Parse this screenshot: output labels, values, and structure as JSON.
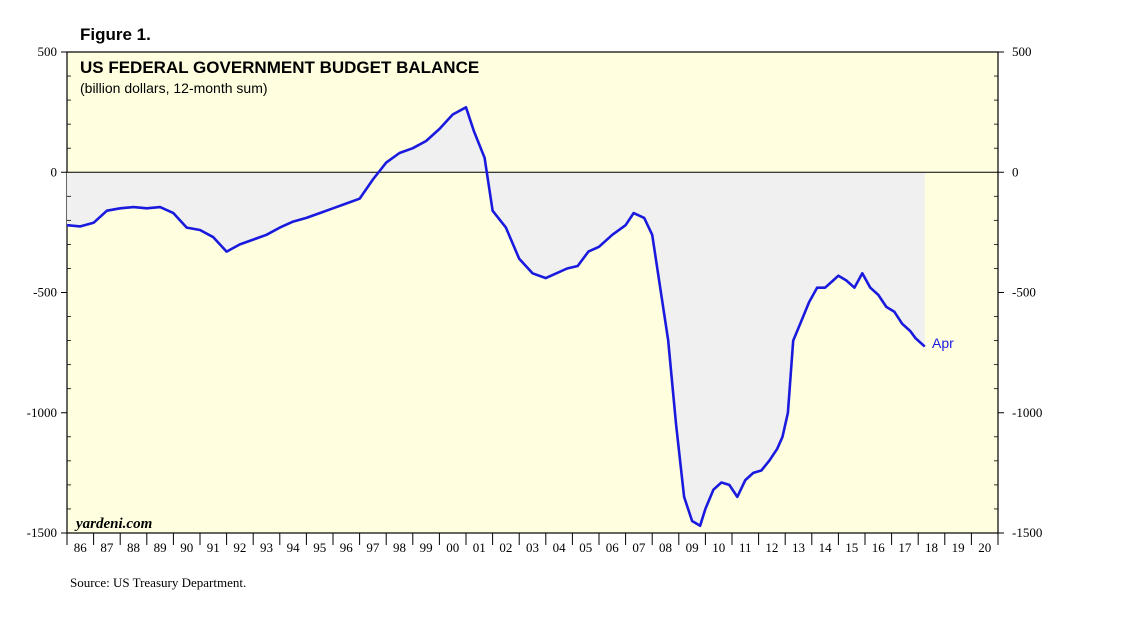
{
  "figure_label": "Figure 1.",
  "source": "Source: US Treasury Department.",
  "watermark": "yardeni.com",
  "chart_data": {
    "type": "area",
    "title": "US FEDERAL GOVERNMENT BUDGET BALANCE",
    "subtitle": "(billion dollars, 12-month sum)",
    "ylim": [
      -1500,
      500
    ],
    "y_major_ticks": [
      500,
      0,
      -500,
      -1000,
      -1500
    ],
    "y_tick_labels_left": [
      "500",
      "0",
      "-500",
      "-1000",
      "-1500"
    ],
    "y_tick_labels_right": [
      "500",
      "0",
      "-500",
      "-1000",
      "-1500"
    ],
    "x_range_years": [
      1986,
      2021
    ],
    "x_tick_labels": [
      "86",
      "87",
      "88",
      "89",
      "90",
      "91",
      "92",
      "93",
      "94",
      "95",
      "96",
      "97",
      "98",
      "99",
      "00",
      "01",
      "02",
      "03",
      "04",
      "05",
      "06",
      "07",
      "08",
      "09",
      "10",
      "11",
      "12",
      "13",
      "14",
      "15",
      "16",
      "17",
      "18",
      "19",
      "20"
    ],
    "end_label": "Apr",
    "line_color": "#1a1adf",
    "fill_color": "#f0f0f0",
    "plot_background": "#ffffe0",
    "series": [
      {
        "x": [
          1986.0,
          1986.5,
          1987.0,
          1987.5,
          1988.0,
          1988.5,
          1989.0,
          1989.5,
          1990.0,
          1990.5,
          1991.0,
          1991.5,
          1992.0,
          1992.5,
          1993.0,
          1993.5,
          1994.0,
          1994.5,
          1995.0,
          1995.5,
          1996.0,
          1996.5,
          1997.0,
          1997.5,
          1998.0,
          1998.5,
          1999.0,
          1999.5,
          2000.0,
          2000.5,
          2001.0,
          2001.3,
          2001.7,
          2002.0,
          2002.5,
          2003.0,
          2003.5,
          2004.0,
          2004.4,
          2004.8,
          2005.2,
          2005.6,
          2006.0,
          2006.5,
          2007.0,
          2007.3,
          2007.7,
          2008.0,
          2008.3,
          2008.6,
          2008.9,
          2009.2,
          2009.5,
          2009.8,
          2010.0,
          2010.3,
          2010.6,
          2010.9,
          2011.2,
          2011.5,
          2011.8,
          2012.1,
          2012.4,
          2012.7,
          2012.9,
          2013.1,
          2013.3,
          2013.6,
          2013.9,
          2014.2,
          2014.5,
          2014.8,
          2015.0,
          2015.3,
          2015.6,
          2015.9,
          2016.2,
          2016.5,
          2016.8,
          2017.1,
          2017.4,
          2017.7,
          2017.9,
          2018.0,
          2018.25
        ],
        "values": [
          -220,
          -225,
          -210,
          -160,
          -150,
          -145,
          -150,
          -145,
          -170,
          -230,
          -240,
          -270,
          -330,
          -300,
          -280,
          -260,
          -230,
          -205,
          -190,
          -170,
          -150,
          -130,
          -110,
          -30,
          40,
          80,
          100,
          130,
          180,
          240,
          270,
          170,
          60,
          -160,
          -230,
          -360,
          -420,
          -440,
          -420,
          -400,
          -390,
          -330,
          -310,
          -260,
          -220,
          -170,
          -190,
          -260,
          -480,
          -700,
          -1050,
          -1350,
          -1450,
          -1470,
          -1400,
          -1320,
          -1290,
          -1300,
          -1350,
          -1280,
          -1250,
          -1240,
          -1200,
          -1150,
          -1100,
          -1000,
          -700,
          -620,
          -540,
          -480,
          -480,
          -450,
          -430,
          -450,
          -480,
          -420,
          -480,
          -510,
          -560,
          -580,
          -630,
          -660,
          -690,
          -700,
          -725
        ]
      }
    ]
  }
}
